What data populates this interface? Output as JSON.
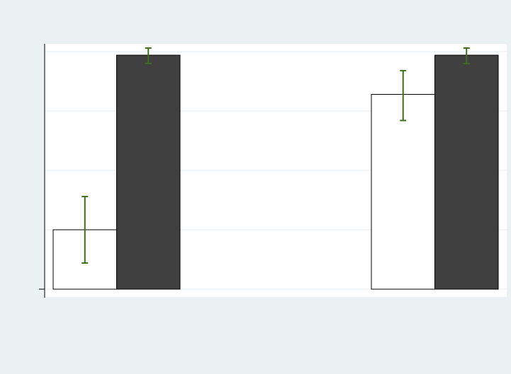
{
  "colors": {
    "outer_background": "#eaf1f3",
    "plot_background": "#ffffff",
    "gridline": "#eaf1f3",
    "axis": "#000000",
    "error_bar": "#3f6f1a",
    "series_1_fill": "#ffffff",
    "series_2_fill": "#404040"
  },
  "chart_data": {
    "type": "bar",
    "title": "",
    "xlabel": "",
    "ylabel": "",
    "ylim": [
      0,
      1
    ],
    "yticks": [
      0,
      0.25,
      0.5,
      0.75,
      1.0
    ],
    "grid": true,
    "legend": "none",
    "tick_labels_shown": false,
    "categories": [
      "",
      ""
    ],
    "series": [
      {
        "values": [
          0.25,
          0.82
        ],
        "error_low": [
          0.11,
          0.71
        ],
        "error_high": [
          0.39,
          0.92
        ]
      },
      {
        "values": [
          0.985,
          0.985
        ],
        "error_low": [
          0.95,
          0.95
        ],
        "error_high": [
          1.015,
          1.015
        ]
      }
    ]
  }
}
